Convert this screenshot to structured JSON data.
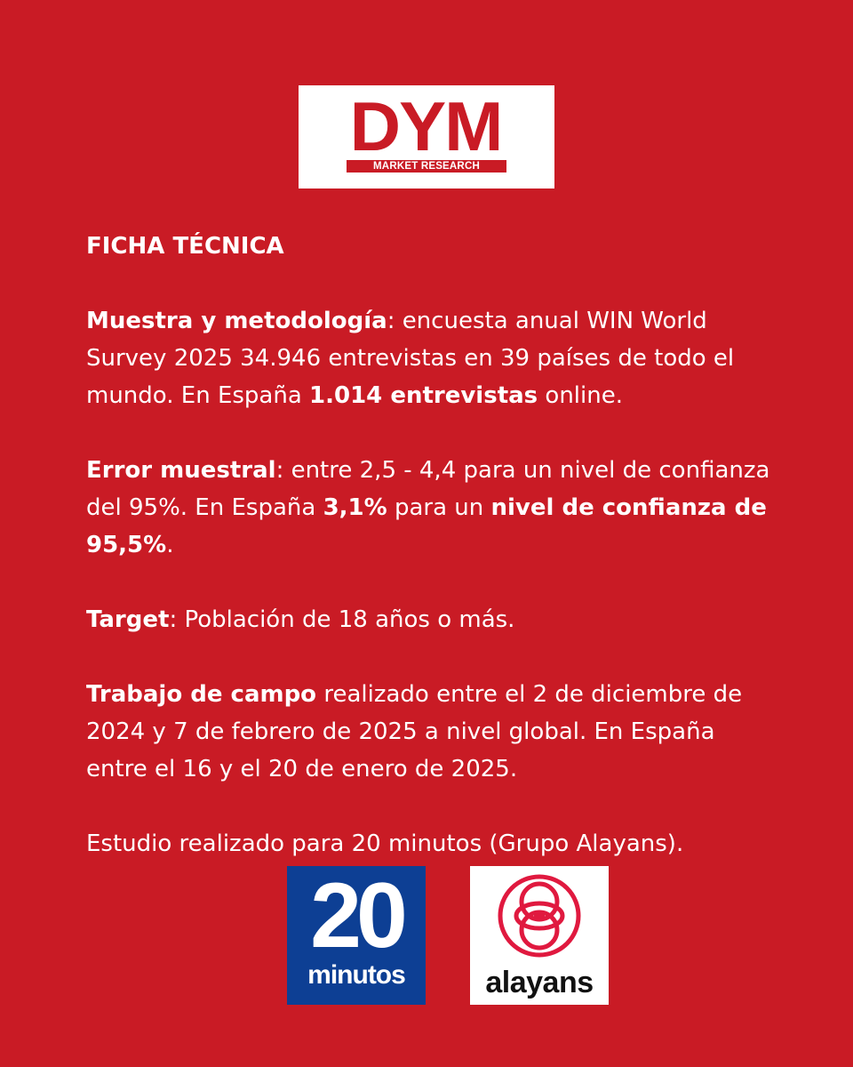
{
  "logos": {
    "dym": {
      "main": "DYM",
      "sub": "MARKET RESEARCH"
    },
    "twenty_minutos": {
      "number": "20",
      "word": "minutos"
    },
    "alayans": {
      "word": "alayans"
    }
  },
  "ficha": {
    "heading": "FICHA TÉCNICA",
    "muestra": {
      "label": "Muestra y metodología",
      "text_1": ": encuesta anual WIN World Survey 2025 34.946 entrevistas en 39 países de todo el mundo. En España ",
      "bold_1": "1.014 entrevistas",
      "text_2": " online."
    },
    "error": {
      "label": "Error muestral",
      "text_1": ": entre 2,5 - 4,4 para un nivel de confianza del 95%. En España ",
      "bold_1": "3,1%",
      "text_2": " para un ",
      "bold_2": "nivel de confianza de 95,5%",
      "text_3": "."
    },
    "target": {
      "label": "Target",
      "text_1": ": Población de 18 años o más."
    },
    "trabajo": {
      "label": "Trabajo de campo",
      "text_1": " realizado entre el 2 de diciembre de 2024 y 7 de febrero de 2025 a nivel global. En España entre el 16 y el 20 de enero de 2025."
    },
    "estudio": "Estudio realizado para 20 minutos (Grupo Alayans)."
  },
  "colors": {
    "background": "#c91b25",
    "twenty_minutos_blue": "#0d3f94",
    "alayans_red": "#e0193f"
  }
}
